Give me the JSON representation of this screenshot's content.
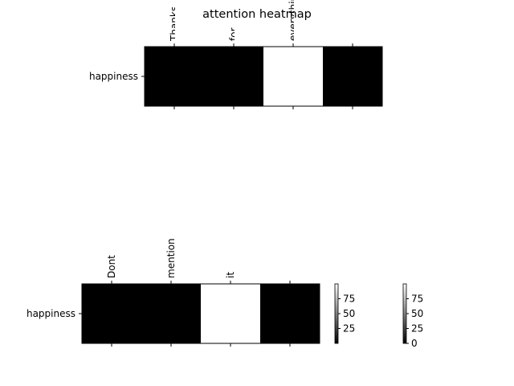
{
  "figure": {
    "title": "attention heatmap"
  },
  "chart_data": [
    {
      "type": "heatmap",
      "title": "",
      "row_labels": [
        "happiness"
      ],
      "col_labels": [
        "Thanks",
        "for",
        "everything",
        ""
      ],
      "values": [
        [
          0,
          0,
          100,
          0
        ]
      ],
      "colormap": "gray",
      "tick_labels_position": "top"
    },
    {
      "type": "heatmap",
      "title": "",
      "row_labels": [
        "happiness"
      ],
      "col_labels": [
        "Dont",
        "mention",
        "it",
        ""
      ],
      "values": [
        [
          0,
          0,
          100,
          0
        ]
      ],
      "colormap": "gray",
      "tick_labels_position": "top"
    }
  ],
  "colorbars": [
    {
      "ticks": [
        "25",
        "50",
        "75"
      ]
    },
    {
      "ticks": [
        "0",
        "25",
        "50",
        "75"
      ]
    }
  ]
}
